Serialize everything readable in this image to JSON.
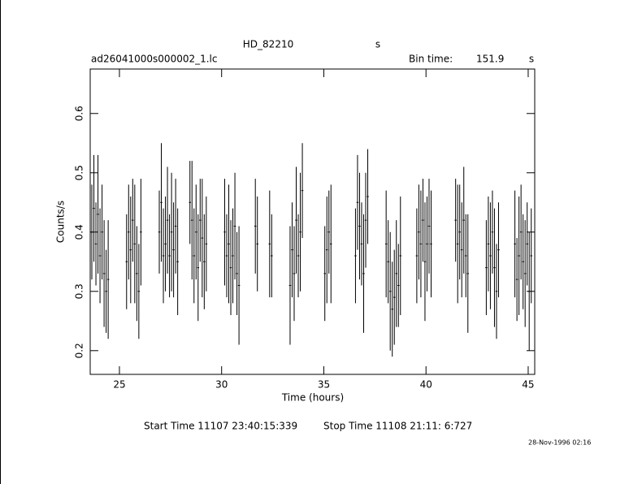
{
  "chart_data": {
    "type": "errorbar",
    "title": "HD_82210",
    "title_unit": "s",
    "subtitle": "ad26041000s000002_1.lc",
    "bin_time_label": "Bin time:",
    "bin_time": 151.9,
    "bin_time_unit": "s",
    "x_label": "Time (hours)",
    "y_label": "Counts/s",
    "start_time": "Start Time 11107 23:40:15:339",
    "stop_time": "Stop Time 11108 21:11: 6:727",
    "date": "28-Nov-1996 02:16",
    "color": "#000000",
    "xlim": [
      23.57,
      45.32
    ],
    "ylim": [
      0.16,
      0.675
    ],
    "xticks": [
      25,
      30,
      35,
      40,
      45
    ],
    "yticks": [
      0.2,
      0.3,
      0.4,
      0.5,
      0.6
    ],
    "x": [
      23.65,
      23.75,
      23.85,
      23.95,
      24.05,
      24.15,
      24.25,
      24.35,
      24.45,
      25.35,
      25.45,
      25.55,
      25.65,
      25.75,
      25.85,
      25.95,
      26.05,
      26.95,
      27.05,
      27.15,
      27.25,
      27.35,
      27.45,
      27.55,
      27.65,
      27.75,
      27.85,
      28.45,
      28.55,
      28.65,
      28.75,
      28.85,
      28.95,
      29.05,
      29.15,
      29.25,
      30.15,
      30.25,
      30.35,
      30.45,
      30.55,
      30.65,
      30.75,
      30.85,
      31.65,
      31.75,
      32.35,
      32.45,
      33.35,
      33.45,
      33.55,
      33.65,
      33.75,
      33.85,
      33.95,
      35.05,
      35.15,
      35.25,
      35.35,
      36.55,
      36.65,
      36.75,
      36.85,
      36.95,
      37.05,
      37.15,
      38.05,
      38.15,
      38.25,
      38.35,
      38.45,
      38.55,
      38.65,
      38.75,
      39.55,
      39.65,
      39.75,
      39.85,
      39.95,
      40.05,
      40.15,
      40.25,
      41.45,
      41.55,
      41.65,
      41.75,
      41.85,
      41.95,
      42.05,
      42.95,
      43.05,
      43.15,
      43.25,
      43.35,
      43.45,
      43.55,
      44.35,
      44.45,
      44.55,
      44.65,
      44.75,
      44.85,
      44.95,
      45.05,
      45.15
    ],
    "values": [
      0.4,
      0.44,
      0.38,
      0.43,
      0.36,
      0.4,
      0.33,
      0.3,
      0.32,
      0.35,
      0.4,
      0.37,
      0.42,
      0.38,
      0.33,
      0.3,
      0.4,
      0.4,
      0.45,
      0.36,
      0.38,
      0.42,
      0.36,
      0.4,
      0.37,
      0.41,
      0.35,
      0.45,
      0.42,
      0.36,
      0.4,
      0.34,
      0.42,
      0.39,
      0.35,
      0.38,
      0.4,
      0.36,
      0.38,
      0.34,
      0.36,
      0.41,
      0.33,
      0.31,
      0.41,
      0.38,
      0.38,
      0.36,
      0.31,
      0.37,
      0.33,
      0.42,
      0.36,
      0.4,
      0.47,
      0.33,
      0.37,
      0.4,
      0.38,
      0.36,
      0.45,
      0.41,
      0.38,
      0.33,
      0.42,
      0.46,
      0.38,
      0.35,
      0.3,
      0.27,
      0.29,
      0.33,
      0.31,
      0.36,
      0.36,
      0.4,
      0.38,
      0.42,
      0.35,
      0.38,
      0.41,
      0.38,
      0.42,
      0.38,
      0.4,
      0.37,
      0.42,
      0.36,
      0.33,
      0.34,
      0.38,
      0.36,
      0.4,
      0.34,
      0.3,
      0.37,
      0.38,
      0.32,
      0.36,
      0.4,
      0.35,
      0.33,
      0.38,
      0.3,
      0.36
    ],
    "errors": [
      0.08,
      0.09,
      0.07,
      0.1,
      0.08,
      0.08,
      0.09,
      0.07,
      0.1,
      0.08,
      0.08,
      0.09,
      0.07,
      0.1,
      0.08,
      0.08,
      0.09,
      0.07,
      0.1,
      0.08,
      0.08,
      0.09,
      0.07,
      0.1,
      0.08,
      0.08,
      0.09,
      0.07,
      0.1,
      0.08,
      0.08,
      0.09,
      0.07,
      0.1,
      0.08,
      0.08,
      0.09,
      0.07,
      0.1,
      0.08,
      0.08,
      0.09,
      0.07,
      0.1,
      0.08,
      0.08,
      0.09,
      0.07,
      0.1,
      0.08,
      0.08,
      0.09,
      0.07,
      0.1,
      0.08,
      0.08,
      0.09,
      0.07,
      0.1,
      0.08,
      0.08,
      0.09,
      0.07,
      0.1,
      0.08,
      0.08,
      0.09,
      0.07,
      0.1,
      0.08,
      0.08,
      0.09,
      0.07,
      0.1,
      0.08,
      0.08,
      0.09,
      0.07,
      0.1,
      0.08,
      0.08,
      0.09,
      0.07,
      0.1,
      0.08,
      0.08,
      0.09,
      0.07,
      0.1,
      0.08,
      0.08,
      0.09,
      0.07,
      0.1,
      0.08,
      0.08,
      0.09,
      0.07,
      0.1,
      0.08,
      0.08,
      0.09,
      0.07,
      0.1,
      0.08
    ]
  }
}
